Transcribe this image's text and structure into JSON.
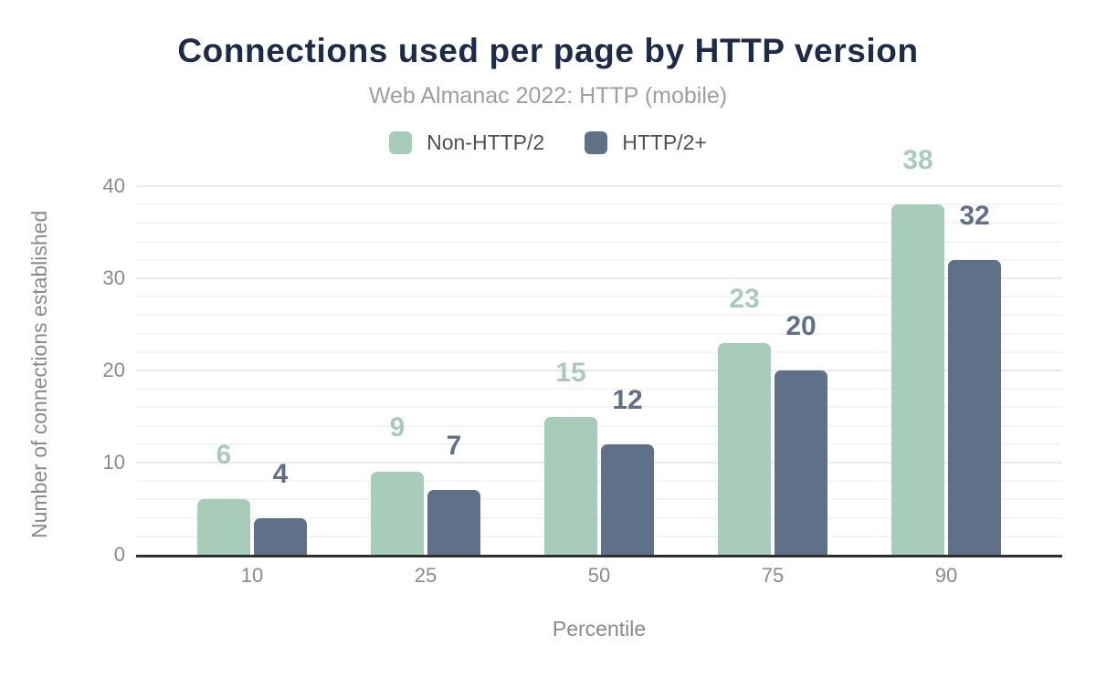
{
  "header": {
    "title": "Connections used per page by HTTP version",
    "subtitle": "Web Almanac 2022: HTTP (mobile)"
  },
  "colors": {
    "title_text": "#1c2b4a",
    "subtitle_text": "#9e9e9e",
    "legend_text": "#4a515a",
    "axis_text": "#8a8a8a",
    "axis_line": "#2f2f2f",
    "grid_major": "#eaeaea",
    "grid_minor": "#f4f4f4",
    "series_non_http2": "#a8ccba",
    "series_http2plus": "#5f7189"
  },
  "chart_data": {
    "type": "bar",
    "title": "Connections used per page by HTTP version",
    "subtitle": "Web Almanac 2022: HTTP (mobile)",
    "categories": [
      "10",
      "25",
      "50",
      "75",
      "90"
    ],
    "series": [
      {
        "name": "Non-HTTP/2",
        "color": "#a8ccba",
        "values": [
          6,
          9,
          15,
          23,
          38
        ]
      },
      {
        "name": "HTTP/2+",
        "color": "#5f7189",
        "values": [
          4,
          7,
          12,
          20,
          32
        ]
      }
    ],
    "xlabel": "Percentile",
    "ylabel": "Number of connections established",
    "ylim": [
      0,
      40
    ],
    "yticks": [
      0,
      10,
      20,
      30,
      40
    ],
    "minor_grid_step": 2,
    "major_grid_step": 10,
    "grid": true,
    "legend_position": "top",
    "data_labels": true
  }
}
